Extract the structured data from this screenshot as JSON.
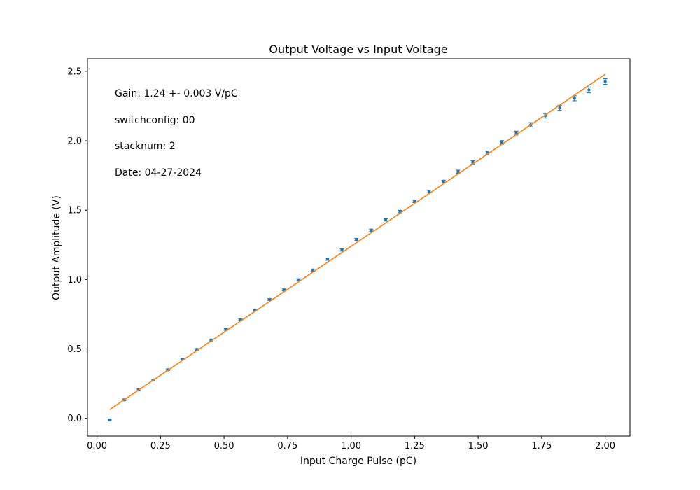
{
  "chart_data": {
    "type": "scatter",
    "title": "Output Voltage vs Input Voltage",
    "xlabel": "Input Charge Pulse (pC)",
    "ylabel": "Output Amplitude (V)",
    "xlim": [
      -0.0375,
      2.0975
    ],
    "ylim": [
      -0.1275,
      2.59
    ],
    "xticks": [
      0.0,
      0.25,
      0.5,
      0.75,
      1.0,
      1.25,
      1.5,
      1.75,
      2.0
    ],
    "xtick_labels": [
      "0.00",
      "0.25",
      "0.50",
      "0.75",
      "1.00",
      "1.25",
      "1.50",
      "1.75",
      "2.00"
    ],
    "yticks": [
      0.0,
      0.5,
      1.0,
      1.5,
      2.0,
      2.5
    ],
    "ytick_labels": [
      "0.0",
      "0.5",
      "1.0",
      "1.5",
      "2.0",
      "2.5"
    ],
    "grid": false,
    "annotations": [
      "Gain:  1.24 +-  0.003 V/pC",
      "switchconfig: 00",
      "stacknum: 2",
      "Date: 04-27-2024"
    ],
    "series": [
      {
        "type": "errorbar",
        "color": "#1f77b4",
        "x": [
          0.05,
          0.107,
          0.164,
          0.221,
          0.279,
          0.336,
          0.393,
          0.45,
          0.507,
          0.564,
          0.621,
          0.679,
          0.736,
          0.793,
          0.85,
          0.907,
          0.964,
          1.021,
          1.079,
          1.136,
          1.193,
          1.25,
          1.307,
          1.364,
          1.421,
          1.479,
          1.536,
          1.593,
          1.65,
          1.707,
          1.764,
          1.821,
          1.879,
          1.936,
          2.0
        ],
        "y": [
          -0.012,
          0.133,
          0.205,
          0.276,
          0.35,
          0.426,
          0.496,
          0.564,
          0.64,
          0.71,
          0.78,
          0.856,
          0.925,
          0.998,
          1.068,
          1.147,
          1.213,
          1.288,
          1.356,
          1.43,
          1.49,
          1.563,
          1.634,
          1.706,
          1.777,
          1.844,
          1.912,
          1.988,
          2.055,
          2.115,
          2.18,
          2.237,
          2.306,
          2.366,
          2.426
        ],
        "yerr": [
          0.005,
          0.006,
          0.006,
          0.006,
          0.006,
          0.006,
          0.006,
          0.006,
          0.006,
          0.006,
          0.006,
          0.006,
          0.007,
          0.007,
          0.007,
          0.008,
          0.008,
          0.008,
          0.008,
          0.008,
          0.009,
          0.009,
          0.009,
          0.01,
          0.011,
          0.012,
          0.013,
          0.013,
          0.014,
          0.015,
          0.016,
          0.018,
          0.018,
          0.02,
          0.02
        ]
      },
      {
        "type": "line",
        "color": "#ff7f0e",
        "x": [
          0.05,
          2.0
        ],
        "y": [
          0.063,
          2.478
        ]
      }
    ]
  }
}
